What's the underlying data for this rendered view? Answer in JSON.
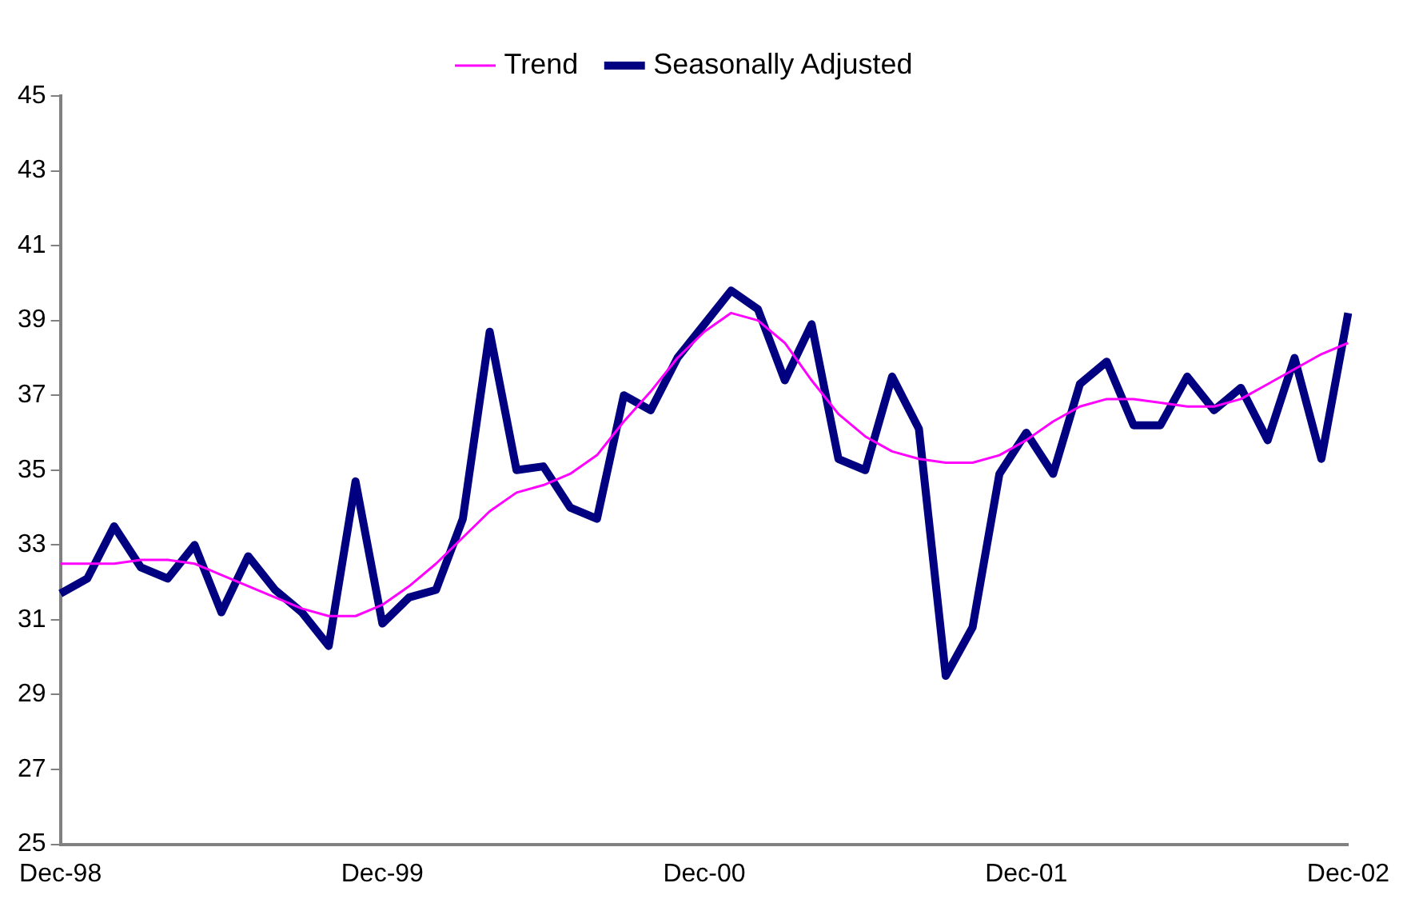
{
  "chart_data": {
    "type": "line",
    "categories": [
      "Dec-98",
      null,
      null,
      null,
      null,
      null,
      null,
      null,
      null,
      null,
      null,
      null,
      "Dec-99",
      null,
      null,
      null,
      null,
      null,
      null,
      null,
      null,
      null,
      null,
      null,
      "Dec-00",
      null,
      null,
      null,
      null,
      null,
      null,
      null,
      null,
      null,
      null,
      null,
      "Dec-01",
      null,
      null,
      null,
      null,
      null,
      null,
      null,
      null,
      null,
      null,
      null,
      "Dec-02"
    ],
    "series": [
      {
        "name": "Seasonally Adjusted",
        "color": "#000080",
        "values": [
          31.7,
          32.1,
          33.5,
          32.4,
          32.1,
          33.0,
          31.2,
          32.7,
          31.8,
          31.2,
          30.3,
          34.7,
          30.9,
          31.6,
          31.8,
          33.7,
          38.7,
          35.0,
          35.1,
          34.0,
          33.7,
          37.0,
          36.6,
          38.0,
          38.9,
          39.8,
          39.3,
          37.4,
          38.9,
          35.3,
          35.0,
          37.5,
          36.1,
          29.5,
          30.8,
          34.9,
          36.0,
          34.9,
          37.3,
          37.9,
          36.2,
          36.2,
          37.5,
          36.6,
          37.2,
          35.8,
          38.0,
          35.3,
          39.2
        ]
      },
      {
        "name": "Trend",
        "color": "#ff00ff",
        "values": [
          32.5,
          32.5,
          32.5,
          32.6,
          32.6,
          32.5,
          32.2,
          31.9,
          31.6,
          31.3,
          31.1,
          31.1,
          31.4,
          31.9,
          32.5,
          33.2,
          33.9,
          34.4,
          34.6,
          34.9,
          35.4,
          36.3,
          37.1,
          38.0,
          38.7,
          39.2,
          39.0,
          38.4,
          37.4,
          36.5,
          35.9,
          35.5,
          35.3,
          35.2,
          35.2,
          35.4,
          35.8,
          36.3,
          36.7,
          36.9,
          36.9,
          36.8,
          36.7,
          36.7,
          36.9,
          37.3,
          37.7,
          38.1,
          38.4
        ]
      }
    ],
    "ylim": [
      25,
      45
    ],
    "yticks": [
      25,
      27,
      29,
      31,
      33,
      35,
      37,
      39,
      41,
      43,
      45
    ],
    "grid": false,
    "legend": "top",
    "marker": "none",
    "line_style": "solid"
  }
}
